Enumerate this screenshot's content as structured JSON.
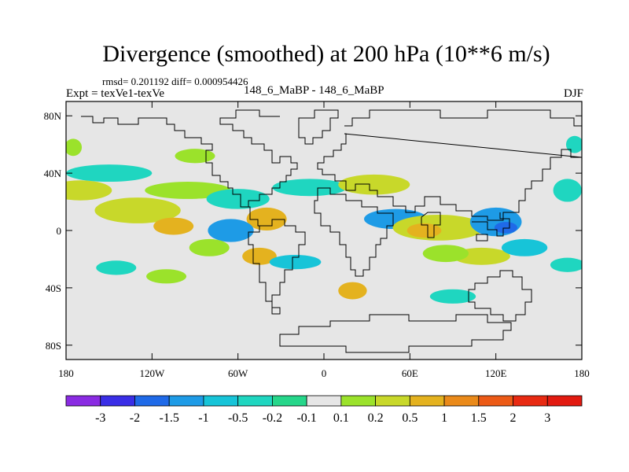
{
  "title": "Divergence (smoothed) at 200 hPa (10**6 m/s)",
  "stats": "rmsd= 0.201192 diff= 0.000954426",
  "expt": "Expt = texVe1-texVe",
  "subtitle": "148_6_MaBP - 148_6_MaBP",
  "season": "DJF",
  "chart_data": {
    "type": "contour-map",
    "title": "Divergence (smoothed) at 200 hPa (10**6 m/s)",
    "xlim": [
      -180,
      180
    ],
    "ylim": [
      -90,
      90
    ],
    "x_ticks": [
      {
        "value": -180,
        "label": "180"
      },
      {
        "value": -120,
        "label": "120W"
      },
      {
        "value": -60,
        "label": "60W"
      },
      {
        "value": 0,
        "label": "0"
      },
      {
        "value": 60,
        "label": "60E"
      },
      {
        "value": 120,
        "label": "120E"
      },
      {
        "value": 180,
        "label": "180"
      }
    ],
    "y_ticks": [
      {
        "value": 80,
        "label": "80N"
      },
      {
        "value": 40,
        "label": "40N"
      },
      {
        "value": 0,
        "label": "0"
      },
      {
        "value": -40,
        "label": "40S"
      },
      {
        "value": -80,
        "label": "80S"
      }
    ],
    "colorbar": {
      "labels": [
        "-3",
        "-2",
        "-1.5",
        "-1",
        "-0.5",
        "-0.2",
        "-0.1",
        "0.1",
        "0.2",
        "0.5",
        "1",
        "1.5",
        "2",
        "3"
      ],
      "colors": [
        "#8a2be2",
        "#3a2ee6",
        "#1f6ae8",
        "#1e9be6",
        "#17c4d8",
        "#1fd6c0",
        "#26d68a",
        "#e6e6e6",
        "#9be22b",
        "#c8d82a",
        "#e4b21f",
        "#ea8a1a",
        "#ec5a16",
        "#e82a12",
        "#e21a10"
      ]
    },
    "anomalies": [
      {
        "lon": -170,
        "lat": 28,
        "rlon": 22,
        "rlat": 7,
        "color": "#c8d82a"
      },
      {
        "lon": -130,
        "lat": 14,
        "rlon": 30,
        "rlat": 9,
        "color": "#c8d82a"
      },
      {
        "lon": -105,
        "lat": 3,
        "rlon": 14,
        "rlat": 6,
        "color": "#e4b21f"
      },
      {
        "lon": -150,
        "lat": 40,
        "rlon": 30,
        "rlat": 6,
        "color": "#1fd6c0"
      },
      {
        "lon": -95,
        "lat": 28,
        "rlon": 30,
        "rlat": 6,
        "color": "#9be22b"
      },
      {
        "lon": -60,
        "lat": 22,
        "rlon": 22,
        "rlat": 7,
        "color": "#1fd6c0"
      },
      {
        "lon": -40,
        "lat": 8,
        "rlon": 14,
        "rlat": 8,
        "color": "#e4b21f"
      },
      {
        "lon": -65,
        "lat": 0,
        "rlon": 16,
        "rlat": 8,
        "color": "#1e9be6"
      },
      {
        "lon": -45,
        "lat": -18,
        "rlon": 12,
        "rlat": 6,
        "color": "#e4b21f"
      },
      {
        "lon": -80,
        "lat": -12,
        "rlon": 14,
        "rlat": 6,
        "color": "#9be22b"
      },
      {
        "lon": -20,
        "lat": -22,
        "rlon": 18,
        "rlat": 5,
        "color": "#17c4d8"
      },
      {
        "lon": -10,
        "lat": 30,
        "rlon": 26,
        "rlat": 6,
        "color": "#1fd6c0"
      },
      {
        "lon": 35,
        "lat": 32,
        "rlon": 25,
        "rlat": 7,
        "color": "#c8d82a"
      },
      {
        "lon": 50,
        "lat": 8,
        "rlon": 22,
        "rlat": 7,
        "color": "#1e9be6"
      },
      {
        "lon": 80,
        "lat": 2,
        "rlon": 32,
        "rlat": 9,
        "color": "#c8d82a"
      },
      {
        "lon": 70,
        "lat": 0,
        "rlon": 12,
        "rlat": 5,
        "color": "#e4b21f"
      },
      {
        "lon": 120,
        "lat": 6,
        "rlon": 18,
        "rlat": 10,
        "color": "#1e9be6"
      },
      {
        "lon": 127,
        "lat": 2,
        "rlon": 8,
        "rlat": 4,
        "color": "#1f6ae8"
      },
      {
        "lon": 110,
        "lat": -18,
        "rlon": 20,
        "rlat": 6,
        "color": "#c8d82a"
      },
      {
        "lon": 85,
        "lat": -16,
        "rlon": 16,
        "rlat": 6,
        "color": "#9be22b"
      },
      {
        "lon": 140,
        "lat": -12,
        "rlon": 16,
        "rlat": 6,
        "color": "#17c4d8"
      },
      {
        "lon": 170,
        "lat": -24,
        "rlon": 12,
        "rlat": 5,
        "color": "#1fd6c0"
      },
      {
        "lon": 20,
        "lat": -42,
        "rlon": 10,
        "rlat": 6,
        "color": "#e4b21f"
      },
      {
        "lon": 90,
        "lat": -46,
        "rlon": 16,
        "rlat": 5,
        "color": "#1fd6c0"
      },
      {
        "lon": -110,
        "lat": -32,
        "rlon": 14,
        "rlat": 5,
        "color": "#9be22b"
      },
      {
        "lon": -145,
        "lat": -26,
        "rlon": 14,
        "rlat": 5,
        "color": "#1fd6c0"
      },
      {
        "lon": -90,
        "lat": 52,
        "rlon": 14,
        "rlat": 5,
        "color": "#9be22b"
      },
      {
        "lon": 170,
        "lat": 28,
        "rlon": 10,
        "rlat": 8,
        "color": "#1fd6c0"
      },
      {
        "lon": -175,
        "lat": 58,
        "rlon": 6,
        "rlat": 6,
        "color": "#9be22b"
      },
      {
        "lon": 175,
        "lat": 60,
        "rlon": 6,
        "rlat": 6,
        "color": "#1fd6c0"
      }
    ]
  }
}
